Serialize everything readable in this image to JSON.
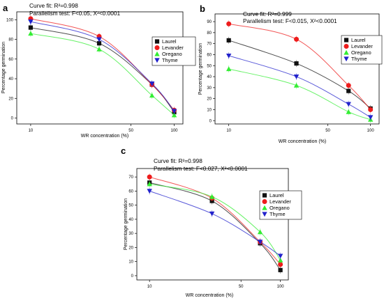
{
  "colors": {
    "Laurel": "#111111",
    "Levander": "#ee1c1c",
    "Oregano": "#33ee33",
    "Thyme": "#2222cc"
  },
  "chart_data": [
    {
      "panel": "a",
      "type": "scatter",
      "fit_line": "Curve fit: R²=0.998",
      "parallel_line": "Parallelism test: F<0.05, X²<0.0001",
      "xlabel": "WR concentration (%)",
      "ylabel": "Percentage germination",
      "x_scale": "log",
      "x_ticks": [
        10,
        50,
        100
      ],
      "y_ticks": [
        0,
        20,
        40,
        60,
        80,
        100
      ],
      "ylim": [
        -6,
        108
      ],
      "x": [
        10,
        30,
        70,
        100
      ],
      "legend_position": "right",
      "series": [
        {
          "name": "Laurel",
          "marker": "square",
          "values": [
            92,
            76,
            34,
            6
          ]
        },
        {
          "name": "Levander",
          "marker": "circle",
          "values": [
            101,
            83,
            34,
            8
          ]
        },
        {
          "name": "Oregano",
          "marker": "triangle-up",
          "values": [
            86,
            70,
            23,
            3
          ]
        },
        {
          "name": "Thyme",
          "marker": "triangle-down",
          "values": [
            98,
            80,
            35,
            7
          ]
        }
      ]
    },
    {
      "panel": "b",
      "type": "scatter",
      "fit_line": "Curve fit: R²=0.999",
      "parallel_line": "Parallelism test: F<0.015, X²<0.0001",
      "xlabel": "WR concentration (%)",
      "ylabel": "Percentage germination",
      "x_scale": "log",
      "x_ticks": [
        10,
        50,
        100
      ],
      "y_ticks": [
        0,
        10,
        20,
        30,
        40,
        50,
        60,
        70,
        80,
        90
      ],
      "ylim": [
        -3,
        97
      ],
      "x": [
        10,
        30,
        70,
        100
      ],
      "legend_position": "right",
      "series": [
        {
          "name": "Laurel",
          "marker": "square",
          "values": [
            73,
            52,
            27,
            11
          ]
        },
        {
          "name": "Levander",
          "marker": "circle",
          "values": [
            88,
            74,
            32,
            10
          ]
        },
        {
          "name": "Oregano",
          "marker": "triangle-up",
          "values": [
            47,
            32,
            8,
            1
          ]
        },
        {
          "name": "Thyme",
          "marker": "triangle-down",
          "values": [
            59,
            40,
            15,
            3
          ]
        }
      ]
    },
    {
      "panel": "c",
      "type": "scatter",
      "fit_line": "Curve fit: R²=0.998",
      "parallel_line": "Parallelism test: F<0.027, X²<0.0001",
      "xlabel": "WR concentration (%)",
      "ylabel": "Percentage germination",
      "x_scale": "log",
      "x_ticks": [
        10,
        50,
        100
      ],
      "y_ticks": [
        0,
        10,
        20,
        30,
        40,
        50,
        60,
        70
      ],
      "ylim": [
        -3,
        76
      ],
      "x": [
        10,
        30,
        70,
        100
      ],
      "legend_position": "right",
      "series": [
        {
          "name": "Laurel",
          "marker": "square",
          "values": [
            66,
            53,
            23,
            4
          ]
        },
        {
          "name": "Levander",
          "marker": "circle",
          "values": [
            70,
            55,
            24,
            8
          ]
        },
        {
          "name": "Oregano",
          "marker": "triangle-up",
          "values": [
            65,
            56,
            31,
            11
          ]
        },
        {
          "name": "Thyme",
          "marker": "triangle-down",
          "values": [
            60,
            44,
            24,
            14
          ]
        }
      ]
    }
  ]
}
